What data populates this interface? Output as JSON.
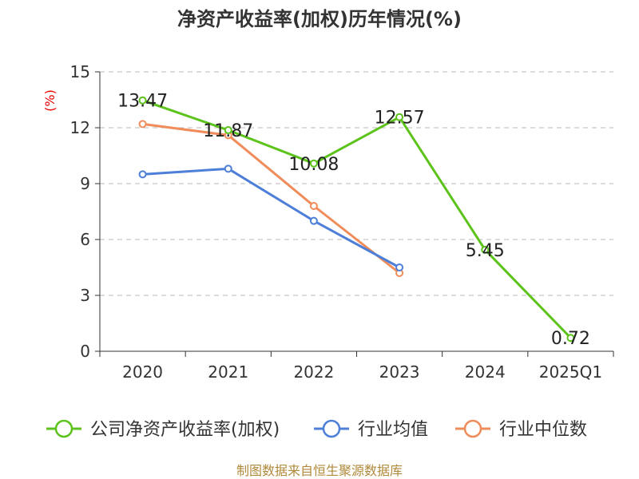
{
  "chart_data": {
    "type": "line",
    "title": "净资产收益率(加权)历年情况(%)",
    "ylabel": "(%)",
    "xlabel": "",
    "categories": [
      "2020",
      "2021",
      "2022",
      "2023",
      "2024",
      "2025Q1"
    ],
    "ylim": [
      0,
      15
    ],
    "yticks": [
      0,
      3,
      6,
      9,
      12,
      15
    ],
    "grid": true,
    "legend_position": "bottom",
    "series": [
      {
        "name": "公司净资产收益率(加权)",
        "color": "#5cc31b",
        "values": [
          13.47,
          11.87,
          10.08,
          12.57,
          5.45,
          0.72
        ],
        "labels": [
          "13.47",
          "11.87",
          "10.08",
          "12.57",
          "5.45",
          "0.72"
        ]
      },
      {
        "name": "行业均值",
        "color": "#4e7fd8",
        "values": [
          9.5,
          9.8,
          7.0,
          4.5,
          null,
          null
        ]
      },
      {
        "name": "行业中位数",
        "color": "#f08c5a",
        "values": [
          12.2,
          11.6,
          7.8,
          4.2,
          null,
          null
        ]
      }
    ]
  },
  "source": "制图数据来自恒生聚源数据库"
}
